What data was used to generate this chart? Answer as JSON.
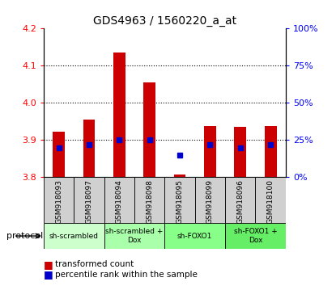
{
  "title": "GDS4963 / 1560220_a_at",
  "samples": [
    "GSM918093",
    "GSM918097",
    "GSM918094",
    "GSM918098",
    "GSM918095",
    "GSM918099",
    "GSM918096",
    "GSM918100"
  ],
  "transformed_count": [
    3.922,
    3.955,
    4.135,
    4.055,
    3.808,
    3.938,
    3.935,
    3.938
  ],
  "percentile_rank": [
    20,
    22,
    25,
    25,
    15,
    22,
    20,
    22
  ],
  "ylim_left": [
    3.8,
    4.2
  ],
  "ylim_right": [
    0,
    100
  ],
  "bar_bottom": 3.8,
  "bar_color": "#cc0000",
  "point_color": "#0000cc",
  "protocols": [
    {
      "label": "sh-scrambled",
      "indices": [
        0,
        1
      ],
      "color": "#ccffcc"
    },
    {
      "label": "sh-scrambled +\nDox",
      "indices": [
        2,
        3
      ],
      "color": "#aaffaa"
    },
    {
      "label": "sh-FOXO1",
      "indices": [
        4,
        5
      ],
      "color": "#88ff88"
    },
    {
      "label": "sh-FOXO1 +\nDox",
      "indices": [
        6,
        7
      ],
      "color": "#66ee66"
    }
  ],
  "yticks_left": [
    3.8,
    3.9,
    4.0,
    4.1,
    4.2
  ],
  "yticks_right": [
    0,
    25,
    50,
    75,
    100
  ],
  "grid_values": [
    3.9,
    4.0,
    4.1
  ],
  "sample_box_color": "#d0d0d0",
  "bar_width": 0.4,
  "legend_items": [
    {
      "label": "transformed count",
      "color": "#cc0000"
    },
    {
      "label": "percentile rank within the sample",
      "color": "#0000cc"
    }
  ]
}
